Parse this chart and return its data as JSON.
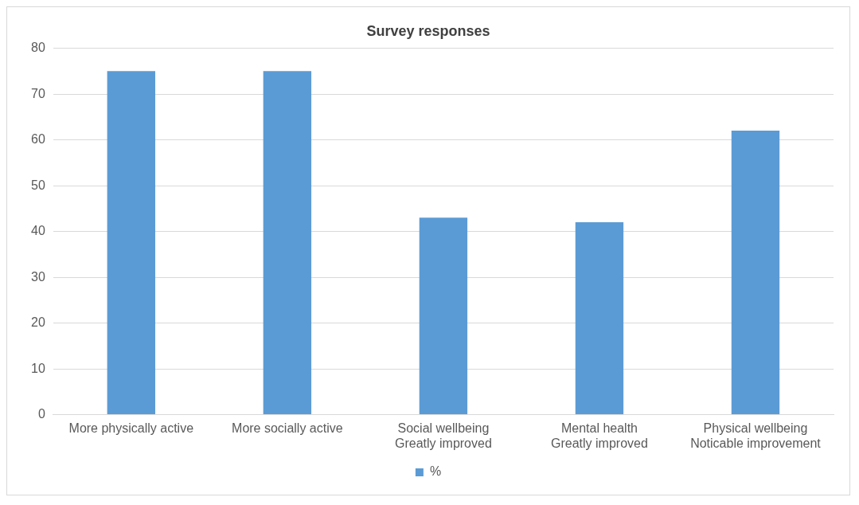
{
  "chart_data": {
    "type": "bar",
    "title": "Survey responses",
    "categories": [
      "More physically active",
      "More socially active",
      "Social wellbeing\nGreatly improved",
      "Mental health\nGreatly improved",
      "Physical wellbeing\nNoticable improvement"
    ],
    "series": [
      {
        "name": "%",
        "color": "#5b9bd5",
        "values": [
          75,
          75,
          43,
          42,
          62
        ]
      }
    ],
    "ylim": [
      0,
      80
    ],
    "yticks": [
      0,
      10,
      20,
      30,
      40,
      50,
      60,
      70,
      80
    ],
    "grid": "y",
    "legend": "bottom"
  }
}
